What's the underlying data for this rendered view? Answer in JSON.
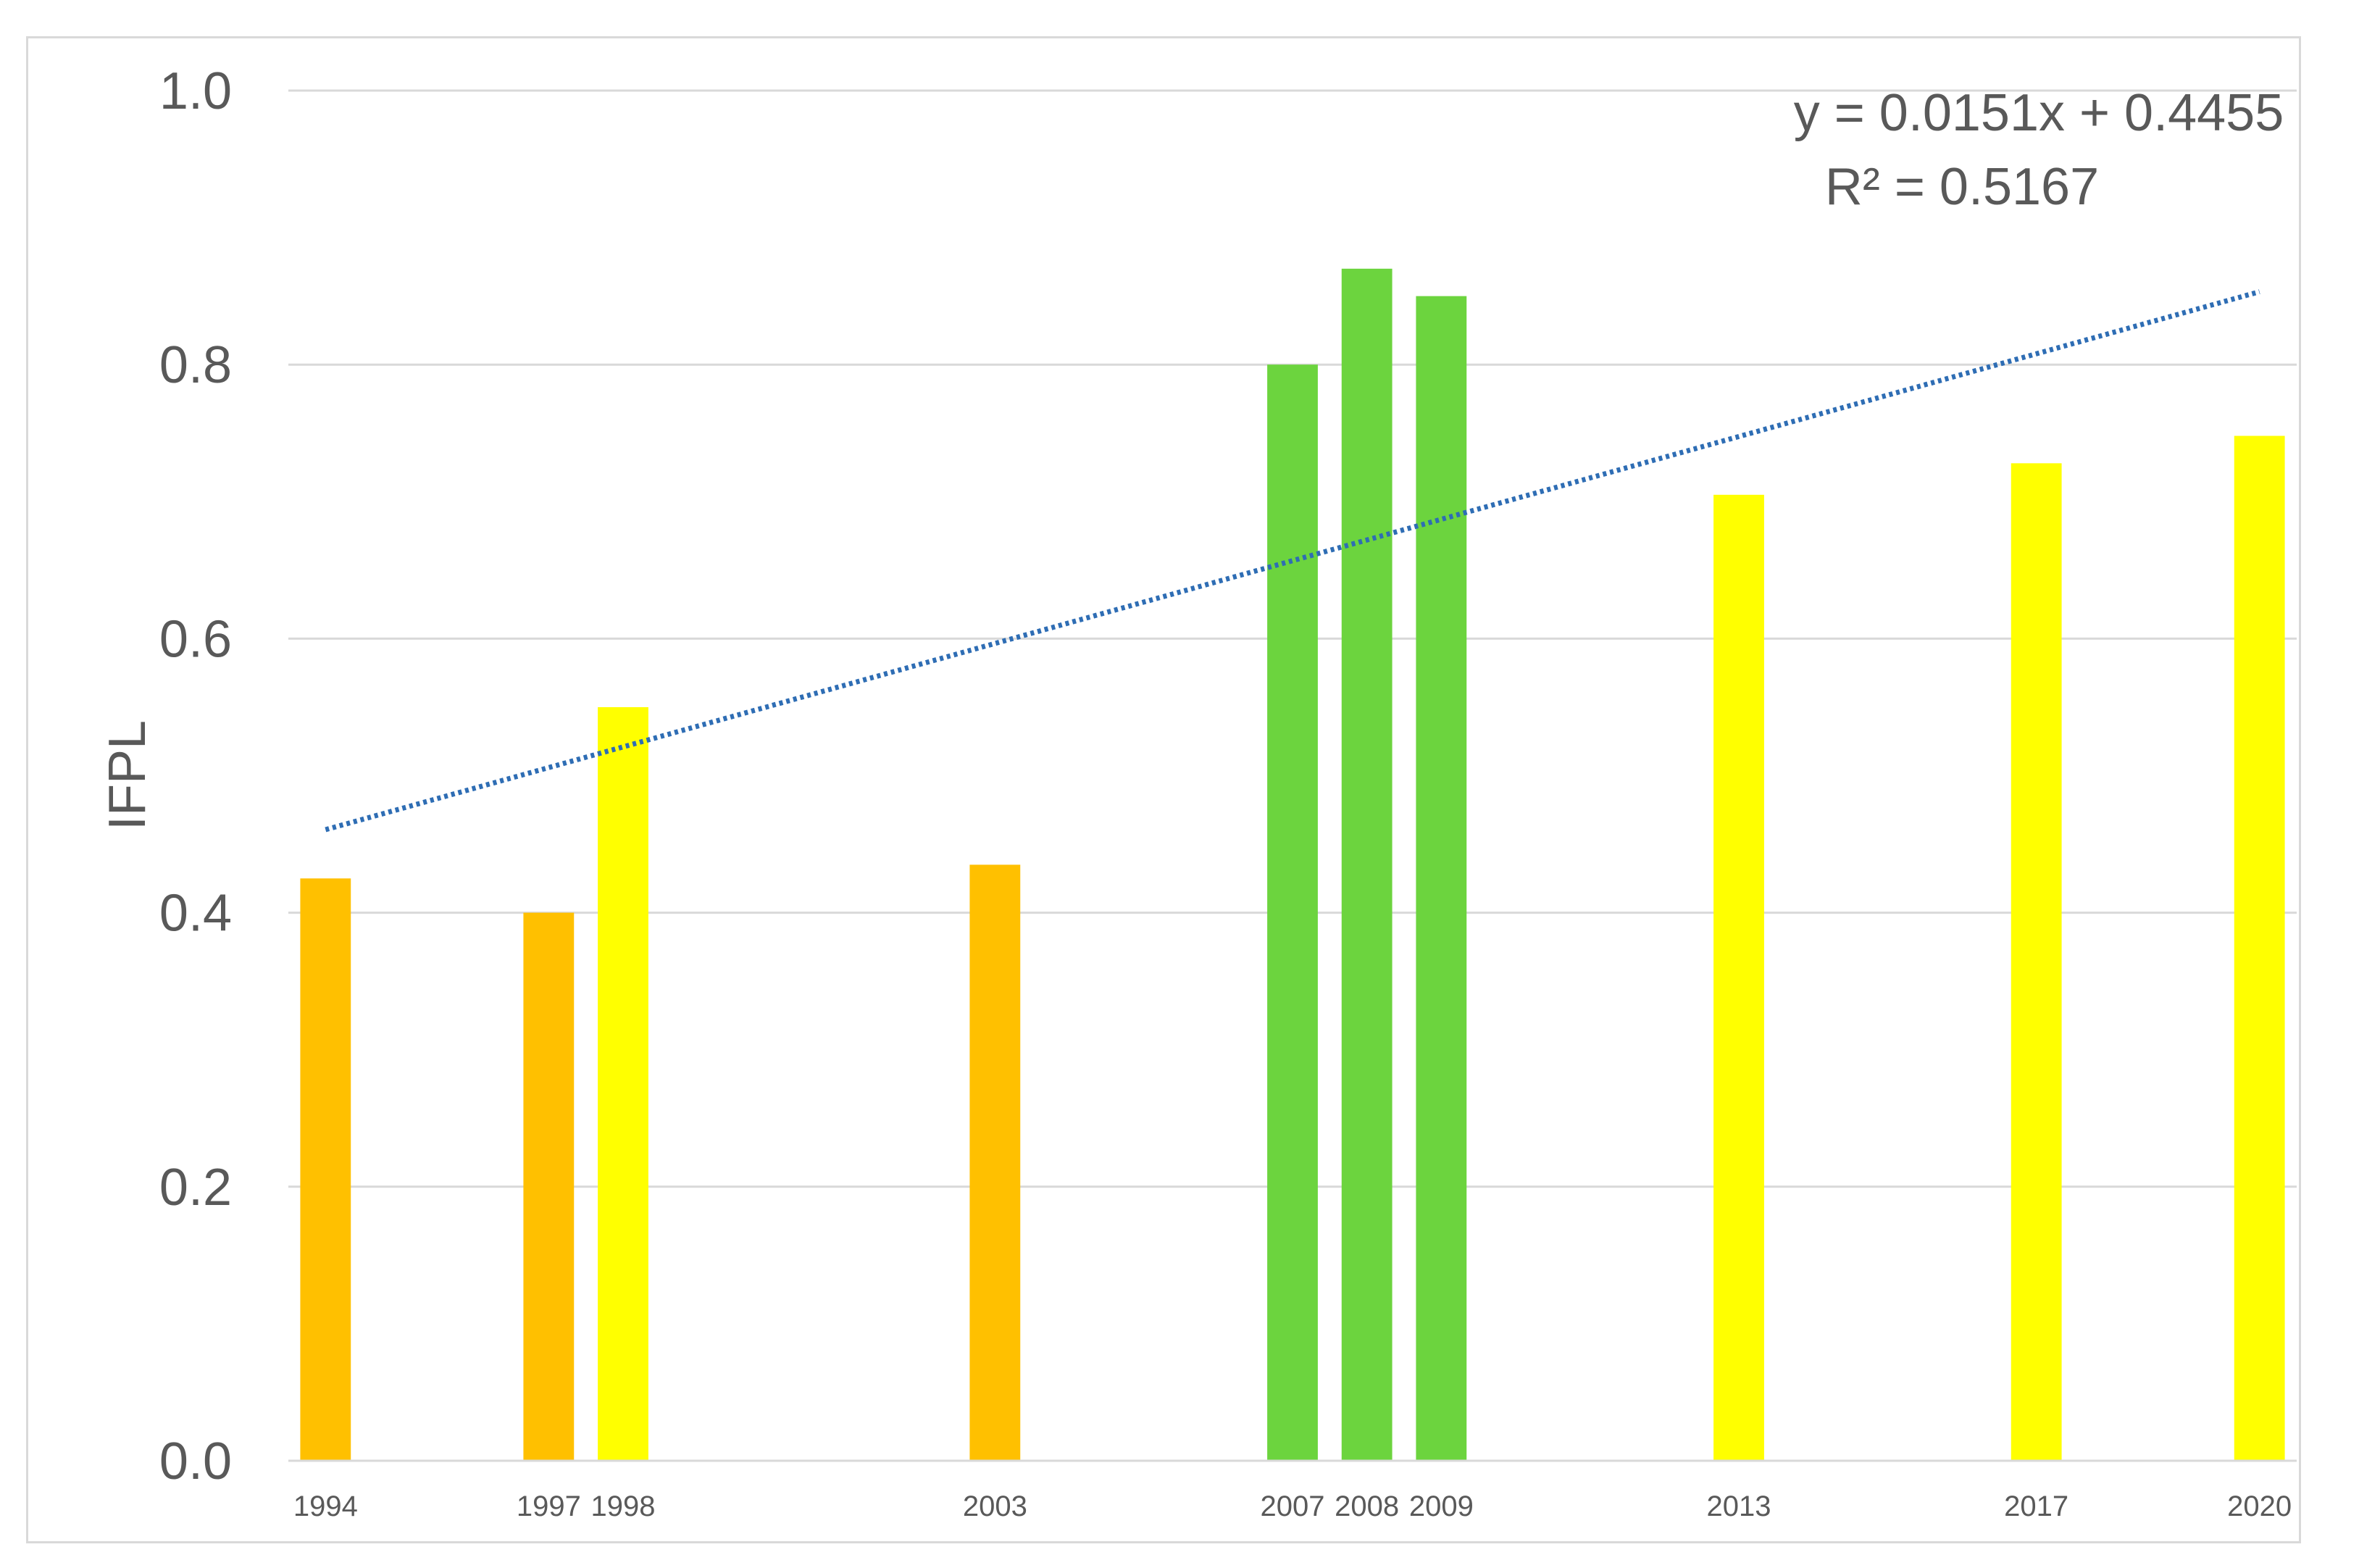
{
  "chart_data": {
    "type": "bar",
    "ylabel": "IFPL",
    "xlabel": "",
    "title": "",
    "ylim": [
      0,
      1.0
    ],
    "yticks": [
      "0.0",
      "0.2",
      "0.4",
      "0.6",
      "0.8",
      "1.0"
    ],
    "x_range": [
      1993.5,
      2020.5
    ],
    "grid": "horizontal",
    "bars": [
      {
        "year": 1994,
        "label": "1994",
        "value": 0.425,
        "color": "#FFC000"
      },
      {
        "year": 1997,
        "label": "1997",
        "value": 0.4,
        "color": "#FFC000"
      },
      {
        "year": 1998,
        "label": "1998",
        "value": 0.55,
        "color": "#FFFF00"
      },
      {
        "year": 2003,
        "label": "2003",
        "value": 0.435,
        "color": "#FFC000"
      },
      {
        "year": 2007,
        "label": "2007",
        "value": 0.8,
        "color": "#6CD43E"
      },
      {
        "year": 2008,
        "label": "2008",
        "value": 0.87,
        "color": "#6CD43E"
      },
      {
        "year": 2009,
        "label": "2009",
        "value": 0.85,
        "color": "#6CD43E"
      },
      {
        "year": 2013,
        "label": "2013",
        "value": 0.705,
        "color": "#FFFF00"
      },
      {
        "year": 2017,
        "label": "2017",
        "value": 0.728,
        "color": "#FFFF00"
      },
      {
        "year": 2020,
        "label": "2020",
        "value": 0.748,
        "color": "#FFFF00"
      }
    ],
    "trendline": {
      "equation": "y = 0.0151x + 0.4455",
      "r_squared": "R² = 0.5167",
      "slope": 0.0151,
      "intercept": 0.4455,
      "point_count": 27,
      "color": "#2E6DB4"
    }
  }
}
